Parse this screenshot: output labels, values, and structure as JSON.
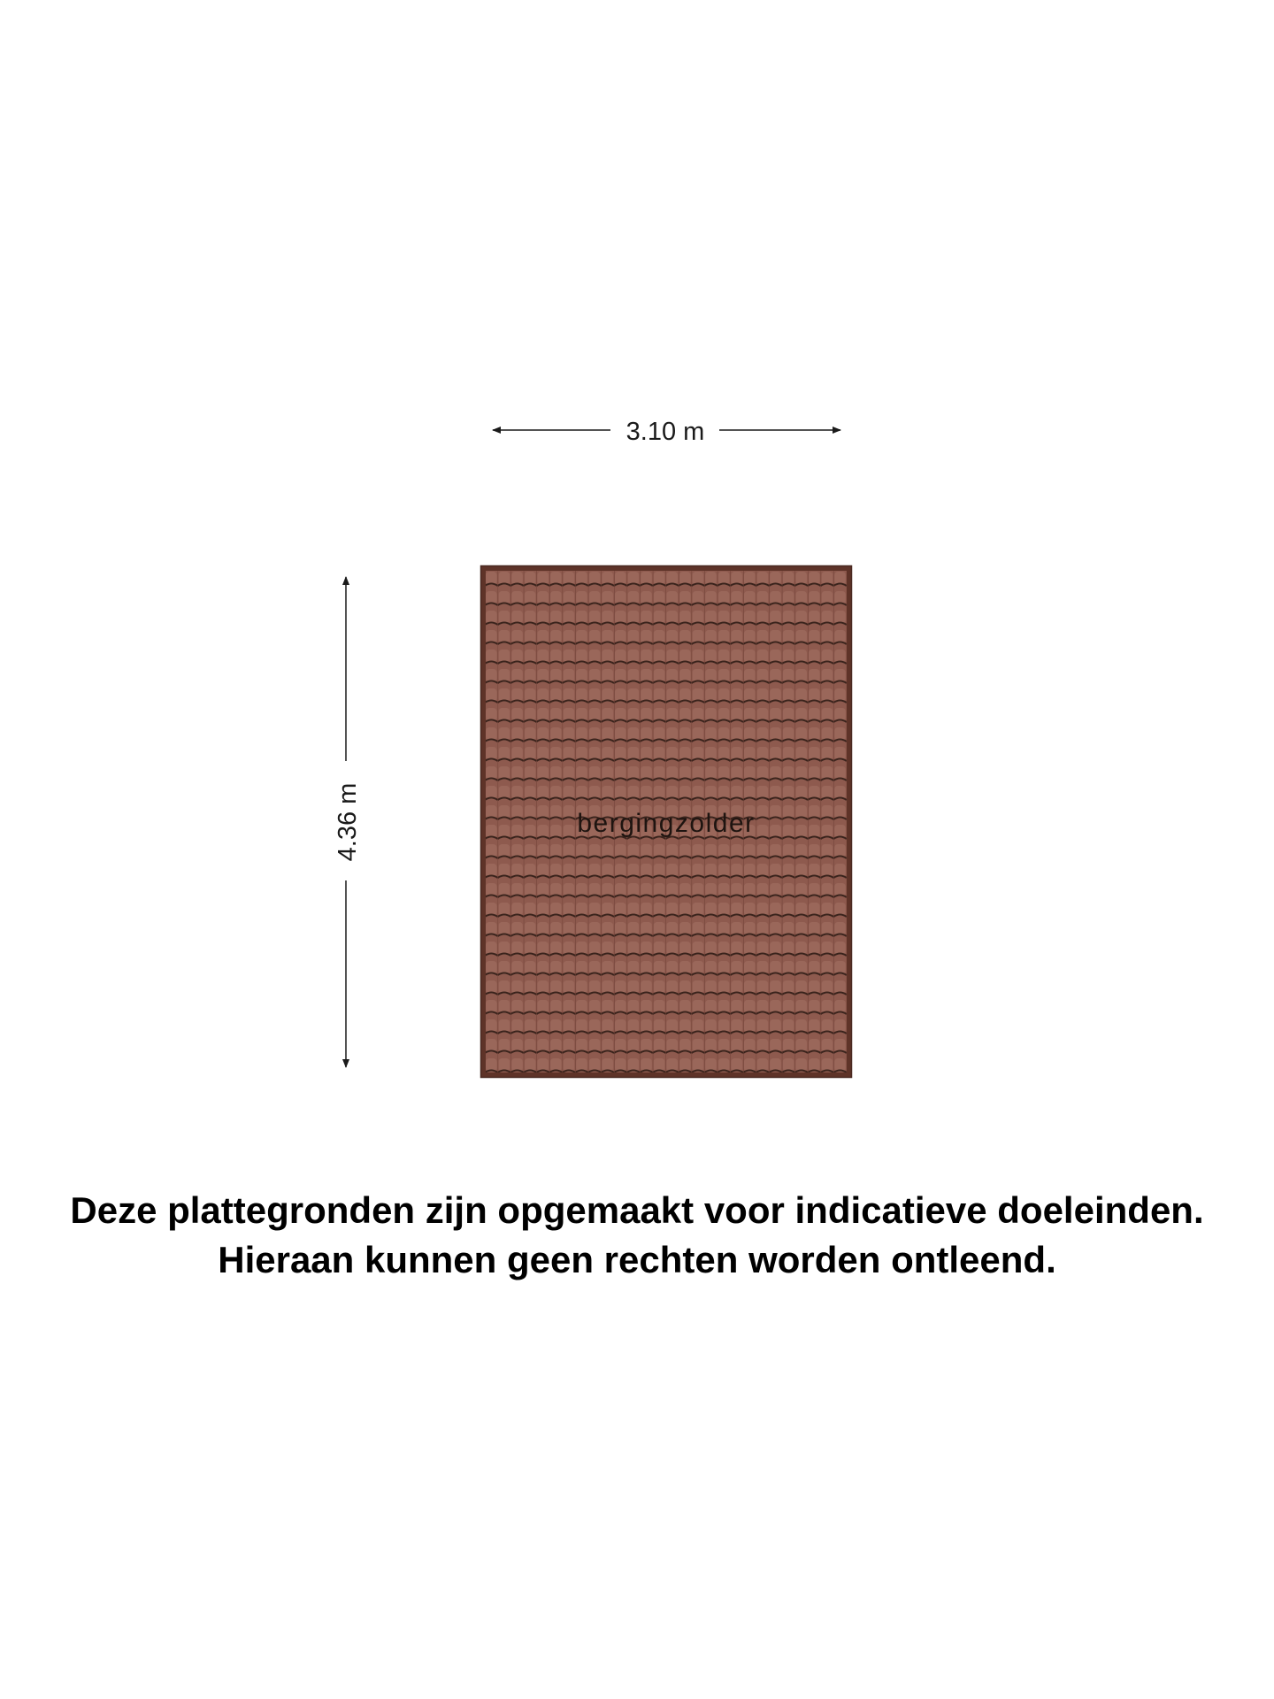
{
  "floorplan": {
    "width_label": "3.10 m",
    "height_label": "4.36 m",
    "room_label": "bergingzolder",
    "roof_color": "#8e5a4e",
    "roof_edge_color": "#5e3328",
    "line_color": "#1a1a1a"
  },
  "disclaimer": {
    "line1": "Deze plattegronden zijn opgemaakt voor indicatieve doeleinden.",
    "line2": "Hieraan kunnen geen rechten worden ontleend."
  }
}
